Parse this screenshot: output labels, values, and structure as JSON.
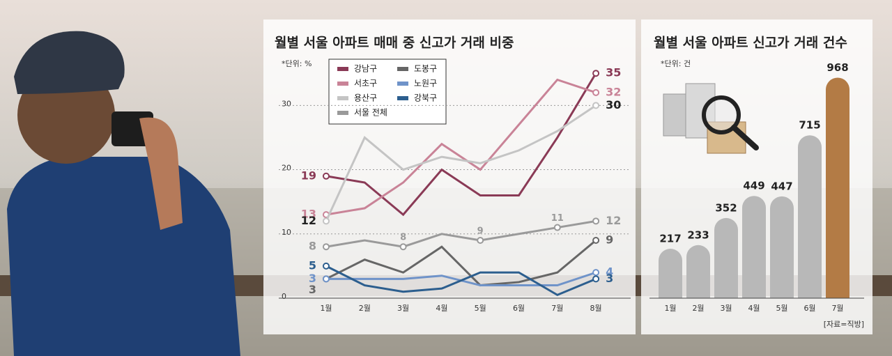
{
  "chart_data": [
    {
      "type": "line",
      "title": "월별 서울 아파트 매매 중 신고가 거래 비중",
      "unit_note": "*단위: %",
      "categories": [
        "1월",
        "2월",
        "3월",
        "4월",
        "5월",
        "6월",
        "7월",
        "8월"
      ],
      "ylim": [
        0,
        36
      ],
      "yticks": [
        0,
        10,
        20,
        30
      ],
      "grid": true,
      "series": [
        {
          "name": "강남구",
          "color": "#8a3a56",
          "values": [
            19,
            18,
            13,
            20,
            16,
            16,
            25,
            35
          ],
          "labeled": [
            0,
            7
          ]
        },
        {
          "name": "서초구",
          "color": "#c98397",
          "values": [
            13,
            14,
            18,
            24,
            20,
            27,
            34,
            32
          ],
          "labeled": [
            0,
            7
          ]
        },
        {
          "name": "용산구",
          "color": "#c4c4c4",
          "values": [
            12,
            25,
            20,
            22,
            21,
            23,
            26,
            30
          ],
          "labeled": [
            0,
            7
          ]
        },
        {
          "name": "서울 전체",
          "color": "#9a9a9a",
          "values": [
            8,
            9,
            8,
            10,
            9,
            10,
            11,
            12
          ],
          "labeled": [
            0,
            2,
            4,
            6,
            7
          ]
        },
        {
          "name": "도봉구",
          "color": "#666666",
          "values": [
            3,
            6,
            4,
            8,
            2,
            2.5,
            4,
            9
          ],
          "labeled": [
            0,
            7
          ]
        },
        {
          "name": "노원구",
          "color": "#6f93c9",
          "values": [
            3,
            3,
            3,
            3.5,
            2,
            2,
            2,
            4
          ],
          "labeled": [
            0,
            7
          ]
        },
        {
          "name": "강북구",
          "color": "#2c5e8e",
          "values": [
            5,
            2,
            1,
            1.5,
            4,
            4,
            0.5,
            3
          ],
          "labeled": [
            0,
            7
          ]
        }
      ]
    },
    {
      "type": "bar",
      "title": "월별 서울 아파트 신고가 거래 건수",
      "unit_note": "*단위: 건",
      "categories": [
        "1월",
        "2월",
        "3월",
        "4월",
        "5월",
        "6월",
        "7월"
      ],
      "values": [
        217,
        233,
        352,
        449,
        447,
        715,
        968
      ],
      "colors": [
        "#b8b8b8",
        "#b8b8b8",
        "#b8b8b8",
        "#b8b8b8",
        "#b8b8b8",
        "#b8b8b8",
        "#b37b45"
      ],
      "source": "[자료=직방]"
    }
  ]
}
